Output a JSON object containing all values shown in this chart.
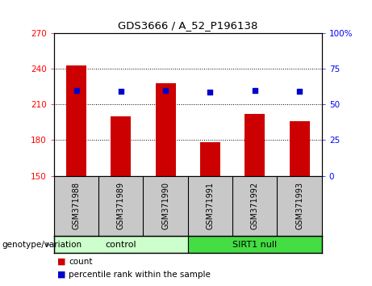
{
  "title": "GDS3666 / A_52_P196138",
  "categories": [
    "GSM371988",
    "GSM371989",
    "GSM371990",
    "GSM371991",
    "GSM371992",
    "GSM371993"
  ],
  "bar_values": [
    243,
    200,
    228,
    178,
    202,
    196
  ],
  "bar_bottom": 150,
  "dot_values": [
    222,
    221,
    222,
    220,
    222,
    221
  ],
  "bar_color": "#cc0000",
  "dot_color": "#0000cc",
  "ylim_left": [
    150,
    270
  ],
  "ylim_right": [
    0,
    100
  ],
  "yticks_left": [
    150,
    180,
    210,
    240,
    270
  ],
  "yticks_right": [
    0,
    25,
    50,
    75,
    100
  ],
  "ytick_labels_right": [
    "0",
    "25",
    "50",
    "75",
    "100%"
  ],
  "groups": [
    {
      "label": "control",
      "indices": [
        0,
        1,
        2
      ],
      "color": "#ccffcc"
    },
    {
      "label": "SIRT1 null",
      "indices": [
        3,
        4,
        5
      ],
      "color": "#44dd44"
    }
  ],
  "group_label": "genotype/variation",
  "legend_items": [
    {
      "label": "count",
      "color": "#cc0000"
    },
    {
      "label": "percentile rank within the sample",
      "color": "#0000cc"
    }
  ],
  "background_color": "#ffffff",
  "tick_area_color": "#c8c8c8"
}
